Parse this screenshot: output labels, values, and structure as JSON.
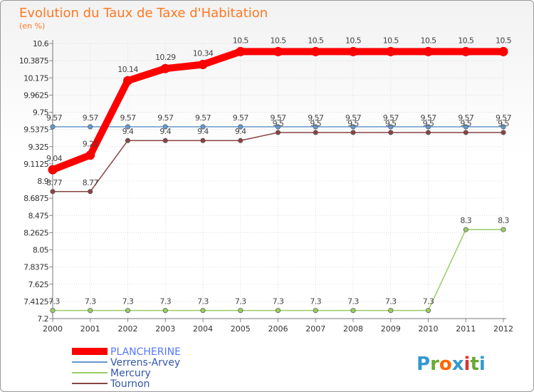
{
  "chart_data": {
    "type": "line",
    "title": "Evolution du Taux de Taxe d'Habitation",
    "subtitle": "(en %)",
    "x": [
      "2000",
      "2001",
      "2002",
      "2003",
      "2004",
      "2005",
      "2006",
      "2007",
      "2008",
      "2009",
      "2010",
      "2011",
      "2012"
    ],
    "y_ticks": [
      "10.6",
      "10.3875",
      "10.175",
      "9.9625",
      "9.75",
      "9.5375",
      "9.325",
      "9.1125",
      "8.9",
      "8.6875",
      "8.475",
      "8.2625",
      "8.05",
      "7.8375",
      "7.625",
      "7.4125",
      "7.2"
    ],
    "ylim": [
      7.2,
      10.6
    ],
    "series": [
      {
        "name": "PLANCHERINE",
        "color": "#ff0000",
        "values": [
          9.04,
          9.22,
          10.14,
          10.29,
          10.34,
          10.5,
          10.5,
          10.5,
          10.5,
          10.5,
          10.5,
          10.5,
          10.5
        ],
        "labels": [
          "9.04",
          "9.22",
          "10.14",
          "10.29",
          "10.34",
          "10.5",
          "10.5",
          "10.5",
          "10.5",
          "10.5",
          "10.5",
          "10.5",
          "10.5"
        ]
      },
      {
        "name": "Verrens-Arvey",
        "color": "#6699cc",
        "values": [
          9.57,
          9.57,
          9.57,
          9.57,
          9.57,
          9.57,
          9.57,
          9.57,
          9.57,
          9.57,
          9.57,
          9.57,
          9.57
        ],
        "labels": [
          "9.57",
          "9.57",
          "9.57",
          "9.57",
          "9.57",
          "9.57",
          "9.57",
          "9.57",
          "9.57",
          "9.57",
          "9.57",
          "9.57",
          "9.57"
        ]
      },
      {
        "name": "Mercury",
        "color": "#99cc66",
        "values": [
          7.3,
          7.3,
          7.3,
          7.3,
          7.3,
          7.3,
          7.3,
          7.3,
          7.3,
          7.3,
          7.3,
          8.3,
          8.3
        ],
        "labels": [
          "7.3",
          "7.3",
          "7.3",
          "7.3",
          "7.3",
          "7.3",
          "7.3",
          "7.3",
          "7.3",
          "7.3",
          "7.3",
          "8.3",
          "8.3"
        ]
      },
      {
        "name": "Tournon",
        "color": "#884444",
        "values": [
          8.77,
          8.77,
          9.4,
          9.4,
          9.4,
          9.4,
          9.5,
          9.5,
          9.5,
          9.5,
          9.5,
          9.5,
          9.5
        ],
        "labels": [
          "8.77",
          "8.77",
          "9.4",
          "9.4",
          "9.4",
          "9.4",
          "9.5",
          "9.5",
          "9.5",
          "9.5",
          "9.5",
          "9.5",
          "9.5"
        ]
      }
    ]
  },
  "brand": {
    "text": "Proxiti",
    "letters": [
      "P",
      "r",
      "o",
      "x",
      "i",
      "t",
      "i"
    ],
    "colors": [
      "#3399cc",
      "#66aa33",
      "#ff6600",
      "#3399cc",
      "#dd3333",
      "#66aa33",
      "#3399cc"
    ]
  }
}
